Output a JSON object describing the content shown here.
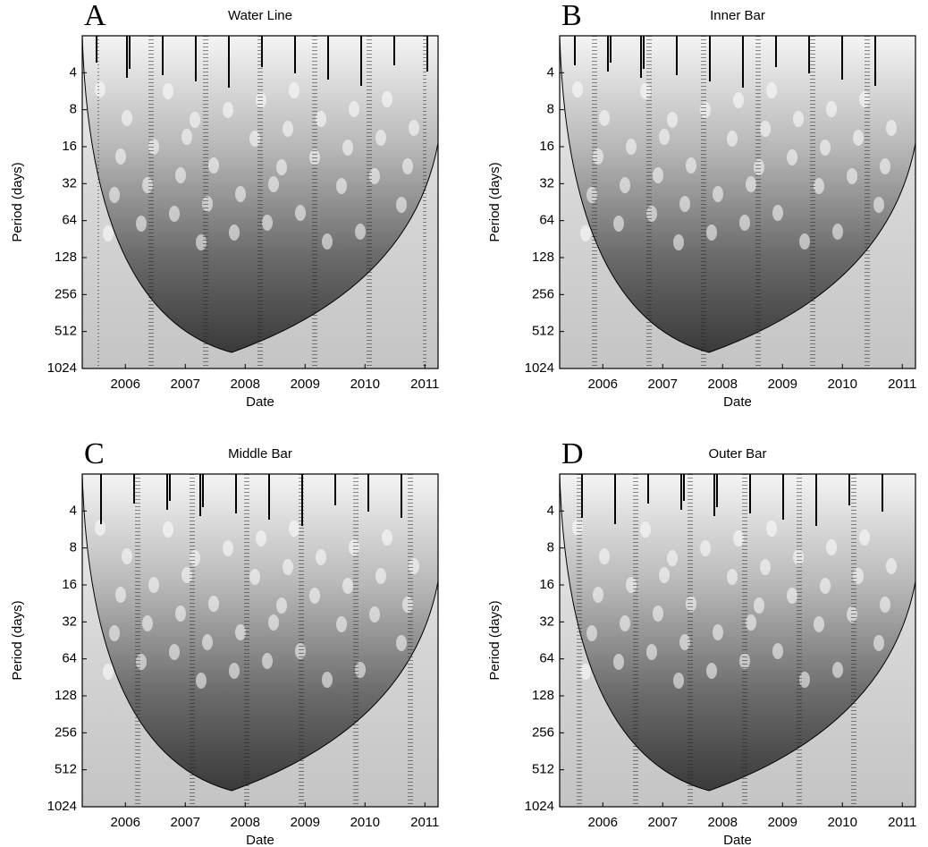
{
  "chart_data": [
    {
      "type": "heatmap",
      "panel_label": "A",
      "title": "Water Line",
      "x_label": "Date",
      "y_label": "Period (days)",
      "xlim": [
        2005.28,
        2011.22
      ],
      "xticks": [
        2006,
        2007,
        2008,
        2009,
        2010,
        2011
      ],
      "ylim": [
        2,
        1024
      ],
      "yticks": [
        4,
        8,
        16,
        32,
        64,
        128,
        256,
        512,
        1024
      ],
      "log_scale": true,
      "y_reversed": true
    },
    {
      "type": "heatmap",
      "panel_label": "B",
      "title": "Inner Bar",
      "x_label": "Date",
      "y_label": "Period (days)",
      "xlim": [
        2005.28,
        2011.22
      ],
      "xticks": [
        2006,
        2007,
        2008,
        2009,
        2010,
        2011
      ],
      "ylim": [
        2,
        1024
      ],
      "yticks": [
        4,
        8,
        16,
        32,
        64,
        128,
        256,
        512,
        1024
      ],
      "log_scale": true,
      "y_reversed": true
    },
    {
      "type": "heatmap",
      "panel_label": "C",
      "title": "Middle Bar",
      "x_label": "Date",
      "y_label": "Period (days)",
      "xlim": [
        2005.28,
        2011.22
      ],
      "xticks": [
        2006,
        2007,
        2008,
        2009,
        2010,
        2011
      ],
      "ylim": [
        2,
        1024
      ],
      "yticks": [
        4,
        8,
        16,
        32,
        64,
        128,
        256,
        512,
        1024
      ],
      "log_scale": true,
      "y_reversed": true
    },
    {
      "type": "heatmap",
      "panel_label": "D",
      "title": "Outer Bar",
      "x_label": "Date",
      "y_label": "Period (days)",
      "xlim": [
        2005.28,
        2011.22
      ],
      "xticks": [
        2006,
        2007,
        2008,
        2009,
        2010,
        2011
      ],
      "ylim": [
        2,
        1024
      ],
      "yticks": [
        4,
        8,
        16,
        32,
        64,
        128,
        256,
        512,
        1024
      ],
      "log_scale": true,
      "y_reversed": true
    }
  ]
}
